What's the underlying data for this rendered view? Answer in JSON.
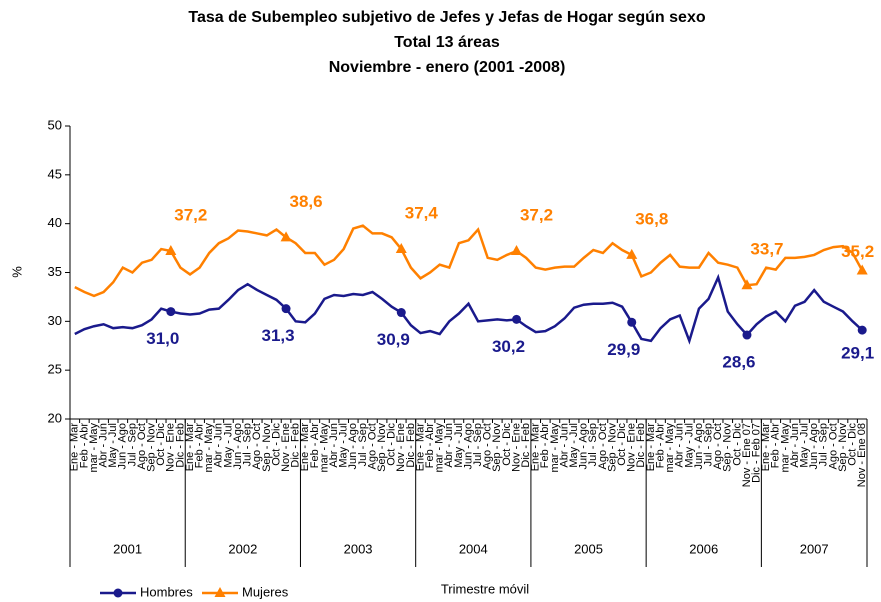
{
  "chart_data": {
    "type": "line",
    "title": "Tasa de Subempleo subjetivo de Jefes y Jefas de Hogar según sexo",
    "subtitle": [
      "Total 13 áreas",
      "Noviembre  - enero (2001 -2008)"
    ],
    "y_label": "%",
    "x_label": "Trimestre móvil",
    "categories": [
      "Ene - Mar",
      "Feb - Abr",
      "mar - May",
      "Abr - Jun",
      "May - Jul",
      "Jun - Ago",
      "Jul - Sep",
      "Ago - Oct",
      "Sep - Nov",
      "Oct - Dic",
      "Nov - Ene",
      "Dic - Feb",
      "Ene - Mar",
      "Feb - Abr",
      "mar - May",
      "Abr - Jun",
      "May - Jul",
      "Jun - Ago",
      "Jul - Sep",
      "Ago - Oct",
      "Sep - Nov",
      "Oct - Dic",
      "Nov - Ene",
      "Dic - Feb",
      "Ene - Mar",
      "Feb - Abr",
      "mar - May",
      "Abr - Jun",
      "May - Jul",
      "Jun - Ago",
      "Jul - Sep",
      "Ago - Oct",
      "Sep - Nov",
      "Oct - Dic",
      "Nov - Ene",
      "Dic - Feb",
      "Ene - Mar",
      "Feb - Abr",
      "mar - May",
      "Abr - Jun",
      "May - Jul",
      "Jun - Ago",
      "Jul - Sep",
      "Ago - Oct",
      "Sep - Nov",
      "Oct - Dic",
      "Nov - Ene",
      "Dic - Feb",
      "Ene - Mar",
      "Feb - Abr",
      "mar - May",
      "Abr - Jun",
      "May - Jul",
      "Jun - Ago",
      "Jul - Sep",
      "Ago - Oct",
      "Sep - Nov",
      "Oct - Dic",
      "Nov - Ene",
      "Dic - Feb",
      "Ene - Mar",
      "Feb - Abr",
      "mar - May",
      "Abr - Jun",
      "May - Jul",
      "Jun - Ago",
      "Jul - Sep",
      "Ago - Oct",
      "Sep - Nov",
      "Oct - Dic",
      "Nov - Ene 07",
      "Dic - Feb 07",
      "Ene - Mar",
      "Feb - Abr",
      "mar - May",
      "Abr - Jun",
      "May - Jul",
      "Jun - Ago",
      "Jul - Sep",
      "Ago - Oct",
      "Sep - Nov",
      "Oct - Dic",
      "Nov - Ene 08"
    ],
    "year_groups": [
      "2001",
      "2002",
      "2003",
      "2004",
      "2005",
      "2006",
      "2007"
    ],
    "series": [
      {
        "name": "Hombres",
        "color": "#1a1a8c",
        "marker": "circle",
        "values": [
          28.7,
          29.2,
          29.5,
          29.7,
          29.3,
          29.4,
          29.3,
          29.6,
          30.2,
          31.3,
          31.0,
          30.8,
          30.7,
          30.8,
          31.2,
          31.3,
          32.2,
          33.2,
          33.8,
          33.2,
          32.7,
          32.2,
          31.3,
          30.0,
          29.9,
          30.8,
          32.3,
          32.7,
          32.6,
          32.8,
          32.7,
          33.0,
          32.3,
          31.5,
          30.9,
          29.6,
          28.8,
          29.0,
          28.7,
          30.0,
          30.8,
          31.8,
          30.0,
          30.1,
          30.2,
          30.1,
          30.2,
          29.5,
          28.9,
          29.0,
          29.5,
          30.3,
          31.4,
          31.7,
          31.8,
          31.8,
          31.9,
          31.5,
          29.9,
          28.2,
          28.0,
          29.3,
          30.2,
          30.6,
          28.0,
          31.3,
          32.3,
          34.5,
          31.0,
          29.7,
          28.6,
          29.7,
          30.5,
          31.0,
          30.0,
          31.6,
          32.0,
          33.2,
          32.0,
          31.5,
          31.0,
          30.0,
          29.1
        ],
        "value_labels": [
          null,
          null,
          null,
          null,
          null,
          null,
          null,
          null,
          null,
          null,
          "31,0",
          null,
          null,
          null,
          null,
          null,
          null,
          null,
          null,
          null,
          null,
          null,
          "31,3",
          null,
          null,
          null,
          null,
          null,
          null,
          null,
          null,
          null,
          null,
          null,
          "30,9",
          null,
          null,
          null,
          null,
          null,
          null,
          null,
          null,
          null,
          null,
          null,
          "30,2",
          null,
          null,
          null,
          null,
          null,
          null,
          null,
          null,
          null,
          null,
          null,
          "29,9",
          null,
          null,
          null,
          null,
          null,
          null,
          null,
          null,
          null,
          null,
          null,
          "28,6",
          null,
          null,
          null,
          null,
          null,
          null,
          null,
          null,
          null,
          null,
          null,
          "29,1"
        ]
      },
      {
        "name": "Mujeres",
        "color": "#ff8000",
        "marker": "triangle",
        "values": [
          33.5,
          33.0,
          32.6,
          33.0,
          34.0,
          35.5,
          35.0,
          36.0,
          36.3,
          37.4,
          37.2,
          35.5,
          34.8,
          35.5,
          37.0,
          38.0,
          38.5,
          39.3,
          39.2,
          39.0,
          38.8,
          39.4,
          38.6,
          38.0,
          37.0,
          37.0,
          35.8,
          36.3,
          37.4,
          39.5,
          39.8,
          39.0,
          39.0,
          38.6,
          37.4,
          35.5,
          34.4,
          35.0,
          35.8,
          35.5,
          38.0,
          38.3,
          39.4,
          36.5,
          36.3,
          36.8,
          37.2,
          36.5,
          35.5,
          35.3,
          35.5,
          35.6,
          35.6,
          36.5,
          37.3,
          37.0,
          38.0,
          37.3,
          36.8,
          34.6,
          35.0,
          36.0,
          36.8,
          35.6,
          35.5,
          35.5,
          37.0,
          36.0,
          35.8,
          35.5,
          33.7,
          33.8,
          35.5,
          35.3,
          36.5,
          36.5,
          36.6,
          36.8,
          37.3,
          37.6,
          37.7,
          37.0,
          35.2
        ],
        "value_labels": [
          null,
          null,
          null,
          null,
          null,
          null,
          null,
          null,
          null,
          null,
          "37,2",
          null,
          null,
          null,
          null,
          null,
          null,
          null,
          null,
          null,
          null,
          null,
          "38,6",
          null,
          null,
          null,
          null,
          null,
          null,
          null,
          null,
          null,
          null,
          null,
          "37,4",
          null,
          null,
          null,
          null,
          null,
          null,
          null,
          null,
          null,
          null,
          null,
          "37,2",
          null,
          null,
          null,
          null,
          null,
          null,
          null,
          null,
          null,
          null,
          null,
          "36,8",
          null,
          null,
          null,
          null,
          null,
          null,
          null,
          null,
          null,
          null,
          null,
          "33,7",
          null,
          null,
          null,
          null,
          null,
          null,
          null,
          null,
          null,
          null,
          null,
          "35,2"
        ]
      }
    ],
    "ylim": [
      20,
      50
    ],
    "yticks": [
      20,
      25,
      30,
      35,
      40,
      45,
      50
    ]
  }
}
